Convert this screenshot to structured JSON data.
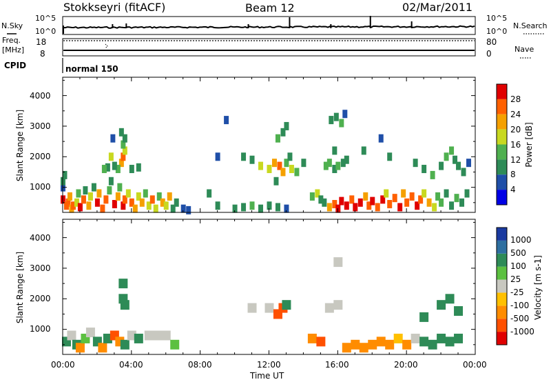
{
  "header": {
    "station": "Stokkseyri (fitACF)",
    "beam": "Beam 12",
    "date": "02/Mar/2011"
  },
  "top_panels": {
    "nsky_label": "N.Sky",
    "nsky_ticks": [
      "10^5",
      "10^0"
    ],
    "nsearch_label": "N.Search",
    "nsearch_ticks": [
      "10^5",
      "10^0"
    ],
    "freq_label": "Freq.",
    "freq_unit": "[MHz]",
    "freq_ticks": [
      "18",
      "8"
    ],
    "nave_label": "Nave",
    "nave_ticks": [
      "80",
      "0"
    ],
    "cpid_label": "CPID",
    "cpid_value": "normal 150"
  },
  "chart_data": {
    "type": "heatmap",
    "x": {
      "label": "Time UT",
      "ticks": [
        "00:00",
        "04:00",
        "08:00",
        "12:00",
        "16:00",
        "20:00",
        "00:00"
      ],
      "range_hours": [
        0,
        24
      ]
    },
    "y": {
      "label": "Slant Range [km]",
      "ticks": [
        "1000",
        "2000",
        "3000",
        "4000"
      ],
      "range_km": [
        180,
        4600
      ]
    },
    "power": {
      "colorbar_label": "Power [dB]",
      "ticks": [
        "4",
        "8",
        "12",
        "16",
        "20",
        "24",
        "28"
      ],
      "range": [
        0,
        32
      ],
      "colors": [
        "#0000e6",
        "#1f4fa8",
        "#2e8b57",
        "#4fb04f",
        "#c8d820",
        "#f5a000",
        "#ff6000",
        "#e00000"
      ]
    },
    "velocity": {
      "colorbar_label": "Velocity [m s-1]",
      "ticks": [
        "1000",
        "500",
        "100",
        "25",
        "-25",
        "-100",
        "-500",
        "-1000"
      ],
      "colors": [
        "#1a3aa0",
        "#2e6fa0",
        "#2e8b57",
        "#5cc040",
        "#c8c8c0",
        "#ffc000",
        "#ff8c00",
        "#ff5000",
        "#e00000"
      ]
    },
    "cells": [
      {
        "t": 0.0,
        "r": 1000,
        "p": 6
      },
      {
        "t": 0.0,
        "r": 1200,
        "p": 10
      },
      {
        "t": 0.1,
        "r": 1400,
        "p": 8
      },
      {
        "t": 0.0,
        "r": 600,
        "p": 28
      },
      {
        "t": 0.2,
        "r": 400,
        "p": 24
      },
      {
        "t": 0.3,
        "r": 500,
        "p": 27
      },
      {
        "t": 0.4,
        "r": 700,
        "p": 22
      },
      {
        "t": 0.5,
        "r": 300,
        "p": 20
      },
      {
        "t": 0.6,
        "r": 400,
        "p": 26
      },
      {
        "t": 0.8,
        "r": 500,
        "p": 18
      },
      {
        "t": 0.9,
        "r": 800,
        "p": 12
      },
      {
        "t": 1.0,
        "r": 350,
        "p": 29
      },
      {
        "t": 1.2,
        "r": 600,
        "p": 25
      },
      {
        "t": 1.3,
        "r": 900,
        "p": 10
      },
      {
        "t": 1.5,
        "r": 400,
        "p": 22
      },
      {
        "t": 1.6,
        "r": 700,
        "p": 16
      },
      {
        "t": 1.8,
        "r": 1000,
        "p": 8
      },
      {
        "t": 2.0,
        "r": 500,
        "p": 28
      },
      {
        "t": 2.1,
        "r": 800,
        "p": 20
      },
      {
        "t": 2.3,
        "r": 300,
        "p": 26
      },
      {
        "t": 2.5,
        "r": 600,
        "p": 24
      },
      {
        "t": 2.7,
        "r": 900,
        "p": 14
      },
      {
        "t": 2.8,
        "r": 1200,
        "p": 10
      },
      {
        "t": 3.0,
        "r": 450,
        "p": 28
      },
      {
        "t": 3.2,
        "r": 700,
        "p": 22
      },
      {
        "t": 3.3,
        "r": 1000,
        "p": 12
      },
      {
        "t": 3.5,
        "r": 400,
        "p": 30
      },
      {
        "t": 3.6,
        "r": 600,
        "p": 26
      },
      {
        "t": 3.8,
        "r": 800,
        "p": 18
      },
      {
        "t": 4.0,
        "r": 500,
        "p": 24
      },
      {
        "t": 4.2,
        "r": 300,
        "p": 22
      },
      {
        "t": 4.4,
        "r": 700,
        "p": 16
      },
      {
        "t": 4.6,
        "r": 500,
        "p": 20
      },
      {
        "t": 4.8,
        "r": 800,
        "p": 14
      },
      {
        "t": 5.0,
        "r": 400,
        "p": 18
      },
      {
        "t": 5.2,
        "r": 600,
        "p": 24
      },
      {
        "t": 5.4,
        "r": 300,
        "p": 16
      },
      {
        "t": 5.6,
        "r": 700,
        "p": 12
      },
      {
        "t": 5.8,
        "r": 500,
        "p": 22
      },
      {
        "t": 6.0,
        "r": 400,
        "p": 18
      },
      {
        "t": 6.2,
        "r": 700,
        "p": 20
      },
      {
        "t": 6.4,
        "r": 300,
        "p": 10
      },
      {
        "t": 6.6,
        "r": 500,
        "p": 8
      },
      {
        "t": 7.0,
        "r": 300,
        "p": 6
      },
      {
        "t": 7.3,
        "r": 250,
        "p": 4
      },
      {
        "t": 3.4,
        "r": 1800,
        "p": 22
      },
      {
        "t": 3.5,
        "r": 2000,
        "p": 26
      },
      {
        "t": 3.6,
        "r": 2200,
        "p": 18
      },
      {
        "t": 3.5,
        "r": 2400,
        "p": 14
      },
      {
        "t": 3.6,
        "r": 2600,
        "p": 10
      },
      {
        "t": 3.4,
        "r": 2800,
        "p": 8
      },
      {
        "t": 3.2,
        "r": 1600,
        "p": 12
      },
      {
        "t": 3.0,
        "r": 1700,
        "p": 10
      },
      {
        "t": 2.6,
        "r": 1650,
        "p": 8
      },
      {
        "t": 2.4,
        "r": 1600,
        "p": 12
      },
      {
        "t": 2.8,
        "r": 2000,
        "p": 16
      },
      {
        "t": 4.0,
        "r": 1600,
        "p": 10
      },
      {
        "t": 4.4,
        "r": 1650,
        "p": 8
      },
      {
        "t": 2.9,
        "r": 2600,
        "p": 6
      },
      {
        "t": 8.5,
        "r": 800,
        "p": 8
      },
      {
        "t": 9.0,
        "r": 2000,
        "p": 6
      },
      {
        "t": 9.5,
        "r": 3200,
        "p": 4
      },
      {
        "t": 9.0,
        "r": 400,
        "p": 8
      },
      {
        "t": 10.0,
        "r": 300,
        "p": 10
      },
      {
        "t": 10.5,
        "r": 350,
        "p": 8
      },
      {
        "t": 11.0,
        "r": 400,
        "p": 12
      },
      {
        "t": 11.5,
        "r": 300,
        "p": 8
      },
      {
        "t": 12.0,
        "r": 400,
        "p": 10
      },
      {
        "t": 12.5,
        "r": 350,
        "p": 8
      },
      {
        "t": 13.0,
        "r": 300,
        "p": 6
      },
      {
        "t": 10.5,
        "r": 2000,
        "p": 8
      },
      {
        "t": 11.0,
        "r": 1900,
        "p": 10
      },
      {
        "t": 11.5,
        "r": 1700,
        "p": 16
      },
      {
        "t": 12.0,
        "r": 1600,
        "p": 18
      },
      {
        "t": 12.3,
        "r": 1800,
        "p": 22
      },
      {
        "t": 12.6,
        "r": 1700,
        "p": 26
      },
      {
        "t": 12.8,
        "r": 1500,
        "p": 20
      },
      {
        "t": 13.0,
        "r": 1800,
        "p": 14
      },
      {
        "t": 13.2,
        "r": 2000,
        "p": 10
      },
      {
        "t": 12.5,
        "r": 2600,
        "p": 12
      },
      {
        "t": 12.8,
        "r": 2800,
        "p": 10
      },
      {
        "t": 13.0,
        "r": 3000,
        "p": 8
      },
      {
        "t": 13.3,
        "r": 1600,
        "p": 18
      },
      {
        "t": 13.6,
        "r": 1500,
        "p": 12
      },
      {
        "t": 12.4,
        "r": 1200,
        "p": 8
      },
      {
        "t": 14.5,
        "r": 700,
        "p": 14
      },
      {
        "t": 14.8,
        "r": 800,
        "p": 18
      },
      {
        "t": 15.0,
        "r": 600,
        "p": 10
      },
      {
        "t": 15.3,
        "r": 1700,
        "p": 14
      },
      {
        "t": 15.5,
        "r": 1800,
        "p": 12
      },
      {
        "t": 15.8,
        "r": 1600,
        "p": 10
      },
      {
        "t": 16.0,
        "r": 1700,
        "p": 12
      },
      {
        "t": 16.3,
        "r": 1800,
        "p": 8
      },
      {
        "t": 16.5,
        "r": 1900,
        "p": 10
      },
      {
        "t": 15.6,
        "r": 3200,
        "p": 8
      },
      {
        "t": 15.9,
        "r": 3300,
        "p": 10
      },
      {
        "t": 16.2,
        "r": 3100,
        "p": 12
      },
      {
        "t": 16.4,
        "r": 3400,
        "p": 6
      },
      {
        "t": 15.8,
        "r": 2200,
        "p": 8
      },
      {
        "t": 15.2,
        "r": 500,
        "p": 10
      },
      {
        "t": 15.5,
        "r": 350,
        "p": 20
      },
      {
        "t": 15.8,
        "r": 450,
        "p": 26
      },
      {
        "t": 16.0,
        "r": 300,
        "p": 28
      },
      {
        "t": 16.2,
        "r": 550,
        "p": 30
      },
      {
        "t": 16.5,
        "r": 400,
        "p": 28
      },
      {
        "t": 16.8,
        "r": 600,
        "p": 24
      },
      {
        "t": 17.0,
        "r": 350,
        "p": 30
      },
      {
        "t": 17.3,
        "r": 500,
        "p": 28
      },
      {
        "t": 17.6,
        "r": 700,
        "p": 20
      },
      {
        "t": 17.8,
        "r": 400,
        "p": 26
      },
      {
        "t": 18.0,
        "r": 550,
        "p": 28
      },
      {
        "t": 18.3,
        "r": 350,
        "p": 24
      },
      {
        "t": 18.6,
        "r": 600,
        "p": 28
      },
      {
        "t": 18.8,
        "r": 800,
        "p": 18
      },
      {
        "t": 19.0,
        "r": 450,
        "p": 26
      },
      {
        "t": 19.3,
        "r": 650,
        "p": 24
      },
      {
        "t": 19.6,
        "r": 350,
        "p": 28
      },
      {
        "t": 19.8,
        "r": 800,
        "p": 22
      },
      {
        "t": 20.0,
        "r": 500,
        "p": 26
      },
      {
        "t": 20.3,
        "r": 700,
        "p": 24
      },
      {
        "t": 20.6,
        "r": 400,
        "p": 28
      },
      {
        "t": 20.8,
        "r": 600,
        "p": 26
      },
      {
        "t": 21.0,
        "r": 800,
        "p": 18
      },
      {
        "t": 21.3,
        "r": 500,
        "p": 22
      },
      {
        "t": 21.6,
        "r": 350,
        "p": 16
      },
      {
        "t": 21.8,
        "r": 700,
        "p": 12
      },
      {
        "t": 22.0,
        "r": 500,
        "p": 14
      },
      {
        "t": 22.3,
        "r": 800,
        "p": 10
      },
      {
        "t": 22.6,
        "r": 400,
        "p": 8
      },
      {
        "t": 22.9,
        "r": 650,
        "p": 12
      },
      {
        "t": 23.2,
        "r": 500,
        "p": 10
      },
      {
        "t": 23.5,
        "r": 800,
        "p": 8
      },
      {
        "t": 20.5,
        "r": 1800,
        "p": 10
      },
      {
        "t": 21.0,
        "r": 1600,
        "p": 8
      },
      {
        "t": 21.5,
        "r": 1400,
        "p": 12
      },
      {
        "t": 22.0,
        "r": 1700,
        "p": 10
      },
      {
        "t": 22.3,
        "r": 2000,
        "p": 14
      },
      {
        "t": 22.6,
        "r": 2200,
        "p": 12
      },
      {
        "t": 22.8,
        "r": 1900,
        "p": 8
      },
      {
        "t": 23.0,
        "r": 1700,
        "p": 10
      },
      {
        "t": 23.3,
        "r": 1500,
        "p": 8
      },
      {
        "t": 23.6,
        "r": 1800,
        "p": 6
      },
      {
        "t": 19.0,
        "r": 2000,
        "p": 8
      },
      {
        "t": 18.5,
        "r": 2600,
        "p": 6
      },
      {
        "t": 17.5,
        "r": 2200,
        "p": 8
      },
      {
        "t": 14.0,
        "r": 1800,
        "p": 8
      }
    ],
    "vel_cells": [
      {
        "t": 0.2,
        "r": 600,
        "v": 100
      },
      {
        "t": 0.5,
        "r": 800,
        "v": 0
      },
      {
        "t": 0.8,
        "r": 500,
        "v": 200
      },
      {
        "t": 1.0,
        "r": 400,
        "v": -100
      },
      {
        "t": 1.3,
        "r": 700,
        "v": 50
      },
      {
        "t": 1.6,
        "r": 900,
        "v": 0
      },
      {
        "t": 2.0,
        "r": 600,
        "v": 150
      },
      {
        "t": 2.3,
        "r": 400,
        "v": -200
      },
      {
        "t": 2.6,
        "r": 700,
        "v": 100
      },
      {
        "t": 3.0,
        "r": 800,
        "v": -300
      },
      {
        "t": 3.3,
        "r": 600,
        "v": -150
      },
      {
        "t": 3.6,
        "r": 500,
        "v": 200
      },
      {
        "t": 4.0,
        "r": 800,
        "v": 0
      },
      {
        "t": 4.4,
        "r": 700,
        "v": 100
      },
      {
        "t": 5.0,
        "r": 800,
        "v": 0
      },
      {
        "t": 5.5,
        "r": 800,
        "v": 0
      },
      {
        "t": 6.0,
        "r": 800,
        "v": 0
      },
      {
        "t": 6.5,
        "r": 500,
        "v": 50
      },
      {
        "t": 3.5,
        "r": 2000,
        "v": 200
      },
      {
        "t": 3.5,
        "r": 2500,
        "v": 150
      },
      {
        "t": 3.6,
        "r": 1800,
        "v": 100
      },
      {
        "t": 11.0,
        "r": 1700,
        "v": 0
      },
      {
        "t": 12.0,
        "r": 1700,
        "v": 0
      },
      {
        "t": 12.5,
        "r": 1500,
        "v": -600
      },
      {
        "t": 12.8,
        "r": 1700,
        "v": -400
      },
      {
        "t": 13.0,
        "r": 1800,
        "v": 300
      },
      {
        "t": 14.5,
        "r": 700,
        "v": -200
      },
      {
        "t": 15.0,
        "r": 600,
        "v": -300
      },
      {
        "t": 15.5,
        "r": 1700,
        "v": 0
      },
      {
        "t": 16.0,
        "r": 1800,
        "v": 0
      },
      {
        "t": 16.0,
        "r": 3200,
        "v": 0
      },
      {
        "t": 16.5,
        "r": 400,
        "v": -200
      },
      {
        "t": 17.0,
        "r": 500,
        "v": -250
      },
      {
        "t": 17.5,
        "r": 400,
        "v": -200
      },
      {
        "t": 18.0,
        "r": 500,
        "v": -150
      },
      {
        "t": 18.5,
        "r": 600,
        "v": -200
      },
      {
        "t": 19.0,
        "r": 500,
        "v": -150
      },
      {
        "t": 19.5,
        "r": 700,
        "v": -50
      },
      {
        "t": 20.0,
        "r": 500,
        "v": -100
      },
      {
        "t": 20.5,
        "r": 700,
        "v": 0
      },
      {
        "t": 21.0,
        "r": 600,
        "v": 100
      },
      {
        "t": 21.5,
        "r": 500,
        "v": 200
      },
      {
        "t": 22.0,
        "r": 700,
        "v": 150
      },
      {
        "t": 22.5,
        "r": 600,
        "v": 200
      },
      {
        "t": 23.0,
        "r": 700,
        "v": 100
      },
      {
        "t": 22.0,
        "r": 1800,
        "v": 200
      },
      {
        "t": 22.5,
        "r": 2000,
        "v": 150
      },
      {
        "t": 23.0,
        "r": 1600,
        "v": 200
      },
      {
        "t": 21.0,
        "r": 1400,
        "v": 100
      }
    ]
  }
}
